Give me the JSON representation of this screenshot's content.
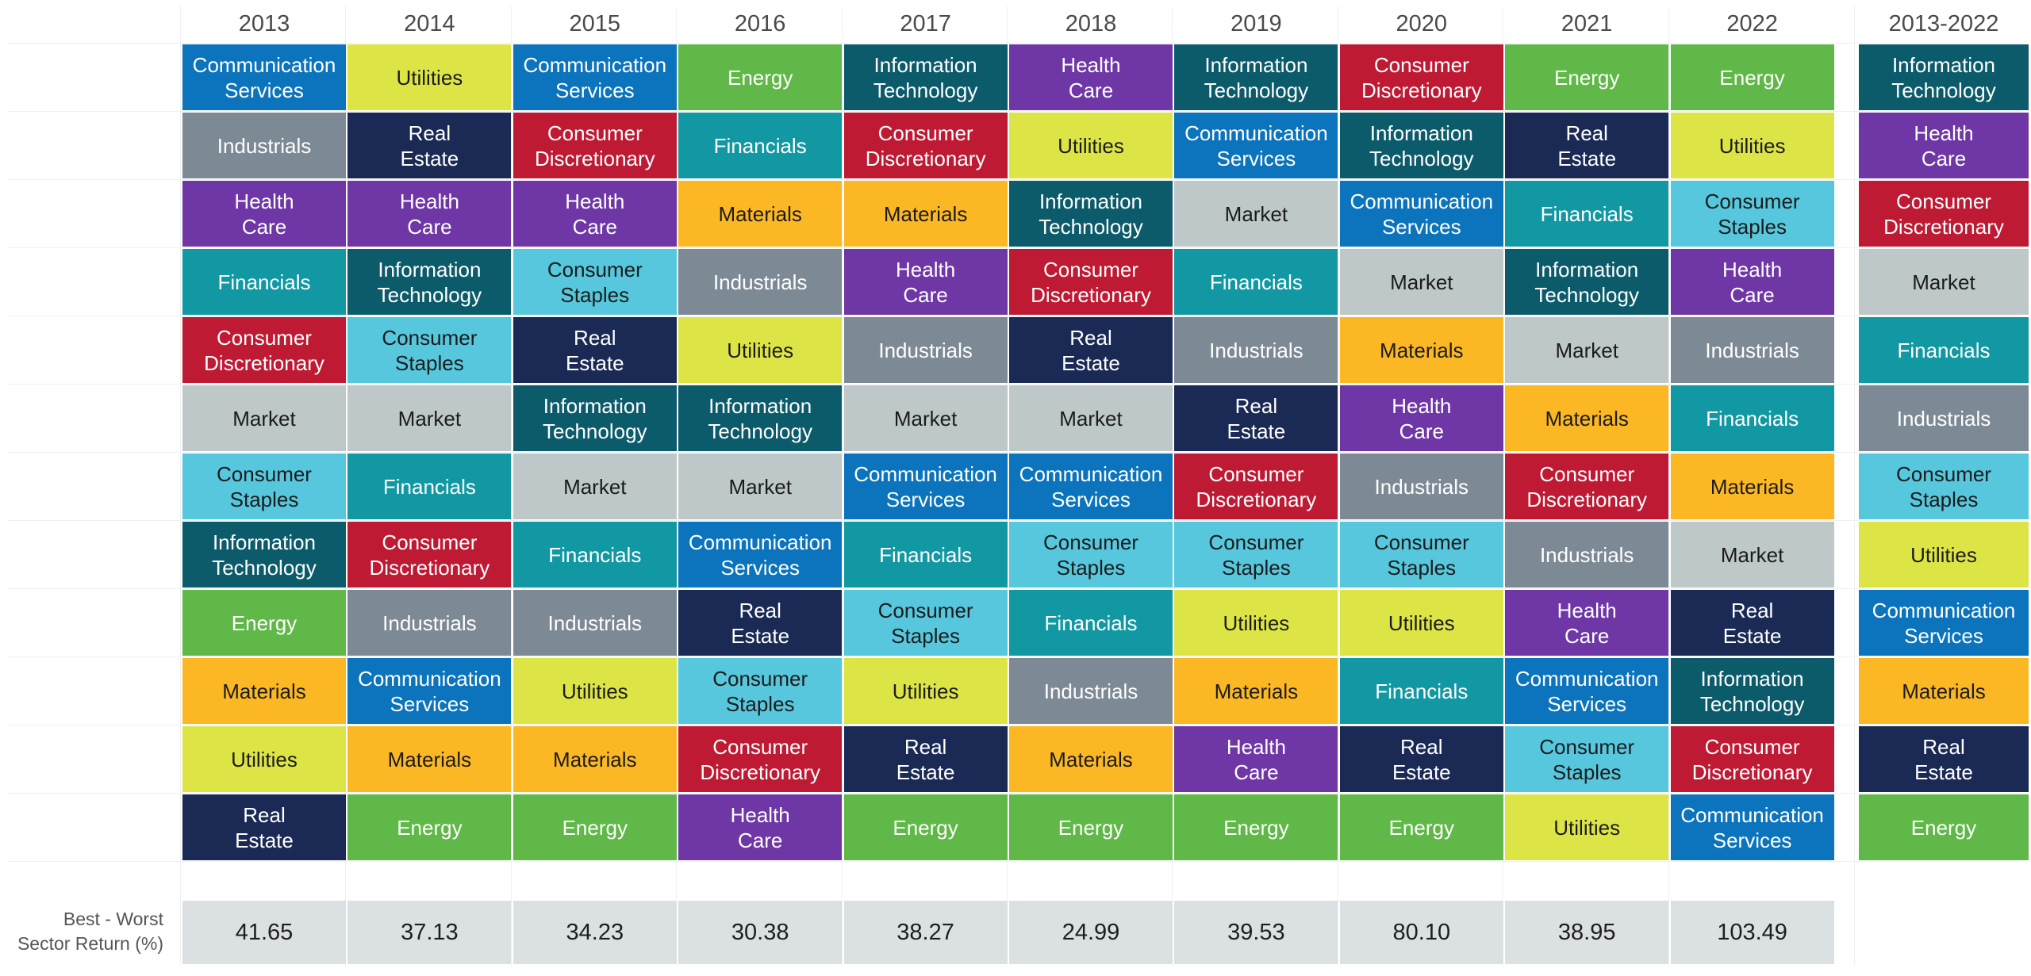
{
  "years": [
    "2013",
    "2014",
    "2015",
    "2016",
    "2017",
    "2018",
    "2019",
    "2020",
    "2021",
    "2022"
  ],
  "cumulative_label": "2013-2022",
  "sector_colors": {
    "Communication Services": "#0c74bc",
    "Utilities": "#dde546",
    "Energy": "#5fb847",
    "Information Technology": "#0c5b6b",
    "Health Care": "#6f37a6",
    "Consumer Discretionary": "#be1a33",
    "Industrials": "#7d8a96",
    "Real Estate": "#1a2a55",
    "Financials": "#1298a3",
    "Materials": "#fcb824",
    "Consumer Staples": "#56c7dd",
    "Market": "#bec8c8"
  },
  "dark_text_sectors": [
    "Utilities",
    "Market",
    "Consumer Staples",
    "Materials"
  ],
  "chart_data": {
    "type": "table",
    "columns": [
      "2013",
      "2014",
      "2015",
      "2016",
      "2017",
      "2018",
      "2019",
      "2020",
      "2021",
      "2022",
      "2013-2022"
    ],
    "rankings": [
      [
        "Communication Services",
        "Industrials",
        "Health Care",
        "Financials",
        "Consumer Discretionary",
        "Market",
        "Consumer Staples",
        "Information Technology",
        "Energy",
        "Materials",
        "Utilities",
        "Real Estate"
      ],
      [
        "Utilities",
        "Real Estate",
        "Health Care",
        "Information Technology",
        "Consumer Staples",
        "Market",
        "Financials",
        "Consumer Discretionary",
        "Industrials",
        "Communication Services",
        "Materials",
        "Energy"
      ],
      [
        "Communication Services",
        "Consumer Discretionary",
        "Health Care",
        "Consumer Staples",
        "Real Estate",
        "Information Technology",
        "Market",
        "Financials",
        "Industrials",
        "Utilities",
        "Materials",
        "Energy"
      ],
      [
        "Energy",
        "Financials",
        "Materials",
        "Industrials",
        "Utilities",
        "Information Technology",
        "Market",
        "Communication Services",
        "Real Estate",
        "Consumer Staples",
        "Consumer Discretionary",
        "Health Care"
      ],
      [
        "Information Technology",
        "Consumer Discretionary",
        "Materials",
        "Health Care",
        "Industrials",
        "Market",
        "Communication Services",
        "Financials",
        "Consumer Staples",
        "Utilities",
        "Real Estate",
        "Energy"
      ],
      [
        "Health Care",
        "Utilities",
        "Information Technology",
        "Consumer Discretionary",
        "Real Estate",
        "Market",
        "Communication Services",
        "Consumer Staples",
        "Financials",
        "Industrials",
        "Materials",
        "Energy"
      ],
      [
        "Information Technology",
        "Communication Services",
        "Market",
        "Financials",
        "Industrials",
        "Real Estate",
        "Consumer Discretionary",
        "Consumer Staples",
        "Utilities",
        "Materials",
        "Health Care",
        "Energy"
      ],
      [
        "Consumer Discretionary",
        "Information Technology",
        "Communication Services",
        "Market",
        "Materials",
        "Health Care",
        "Industrials",
        "Consumer Staples",
        "Utilities",
        "Financials",
        "Real Estate",
        "Energy"
      ],
      [
        "Energy",
        "Real Estate",
        "Financials",
        "Information Technology",
        "Market",
        "Materials",
        "Consumer Discretionary",
        "Industrials",
        "Health Care",
        "Communication Services",
        "Consumer Staples",
        "Utilities"
      ],
      [
        "Energy",
        "Utilities",
        "Consumer Staples",
        "Health Care",
        "Industrials",
        "Financials",
        "Materials",
        "Market",
        "Real Estate",
        "Information Technology",
        "Consumer Discretionary",
        "Communication Services"
      ],
      [
        "Information Technology",
        "Health Care",
        "Consumer Discretionary",
        "Market",
        "Financials",
        "Industrials",
        "Consumer Staples",
        "Utilities",
        "Communication Services",
        "Materials",
        "Real Estate",
        "Energy"
      ]
    ],
    "spread_label": "Best - Worst Sector Return (%)",
    "spread_values": [
      "41.65",
      "37.13",
      "34.23",
      "30.38",
      "38.27",
      "24.99",
      "39.53",
      "80.10",
      "38.95",
      "103.49"
    ]
  }
}
